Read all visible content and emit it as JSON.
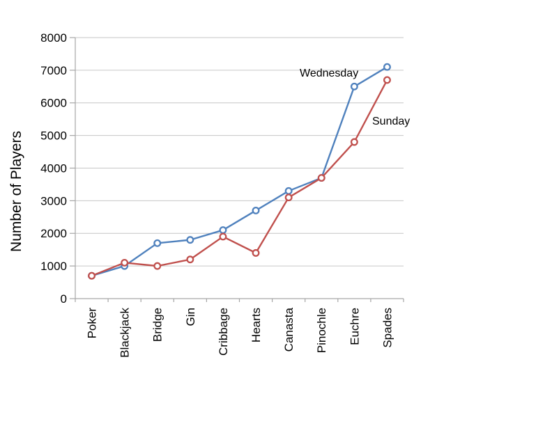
{
  "page": {
    "background": "#FFFFFF"
  },
  "chart_data": {
    "type": "line",
    "title": "",
    "xlabel": "",
    "ylabel": "Number of Players",
    "categories": [
      "Poker",
      "Blackjack",
      "Bridge",
      "Gin",
      "Cribbage",
      "Hearts",
      "Canasta",
      "Pinochle",
      "Euchre",
      "Spades"
    ],
    "series": [
      {
        "name": "Wednesday",
        "color": "#4F81BD",
        "values": [
          700,
          1000,
          1700,
          1800,
          2100,
          2700,
          3300,
          3700,
          6500,
          7100
        ]
      },
      {
        "name": "Sunday",
        "color": "#C0504D",
        "values": [
          700,
          1100,
          1000,
          1200,
          1900,
          1400,
          3100,
          3700,
          4800,
          6700
        ]
      }
    ],
    "ylim": [
      0,
      8000
    ],
    "ytick_step": 1000,
    "ytick_labels": [
      "0",
      "1000",
      "2000",
      "3000",
      "4000",
      "5000",
      "6000",
      "7000",
      "8000"
    ],
    "grid": "horizontal-gridlines",
    "legend": "inline-series-labels",
    "marker": "open-circle",
    "colors": {
      "grid": "#C6C6C6",
      "axis": "#A6A6A6",
      "text": "#000000",
      "marker_fill": "#FFFFFF"
    }
  }
}
